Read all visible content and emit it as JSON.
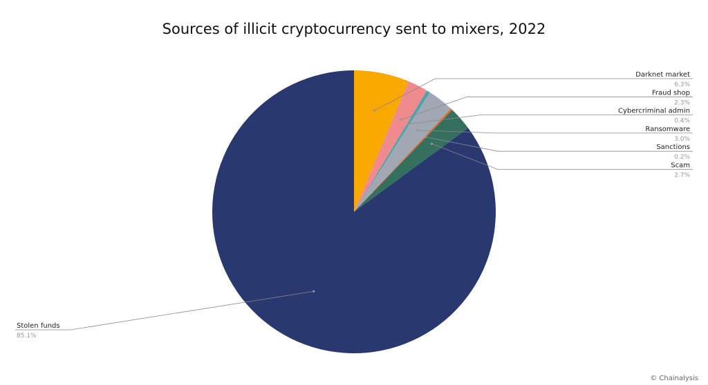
{
  "title": "Sources of illicit cryptocurrency sent to mixers, 2022",
  "credit": "© Chainalysis",
  "chart_data": {
    "type": "pie",
    "title": "Sources of illicit cryptocurrency sent to mixers, 2022",
    "slices": [
      {
        "label": "Darknet market",
        "value": 6.3,
        "display": "6.3%",
        "color": "#f9a800"
      },
      {
        "label": "Fraud shop",
        "value": 2.3,
        "display": "2.3%",
        "color": "#ef8a8e"
      },
      {
        "label": "Cybercriminal admin",
        "value": 0.4,
        "display": "0.4%",
        "color": "#4ea3ad"
      },
      {
        "label": "Ransomware",
        "value": 3.0,
        "display": "3.0%",
        "color": "#a1a8b3"
      },
      {
        "label": "Sanctions",
        "value": 0.2,
        "display": "0.2%",
        "color": "#e0672a"
      },
      {
        "label": "Scam",
        "value": 2.7,
        "display": "2.7%",
        "color": "#35705f"
      },
      {
        "label": "Stolen funds",
        "value": 85.1,
        "display": "85.1%",
        "color": "#29386f"
      }
    ],
    "legend": "none",
    "label_placement": "right (small slices), left (Stolen funds)"
  }
}
